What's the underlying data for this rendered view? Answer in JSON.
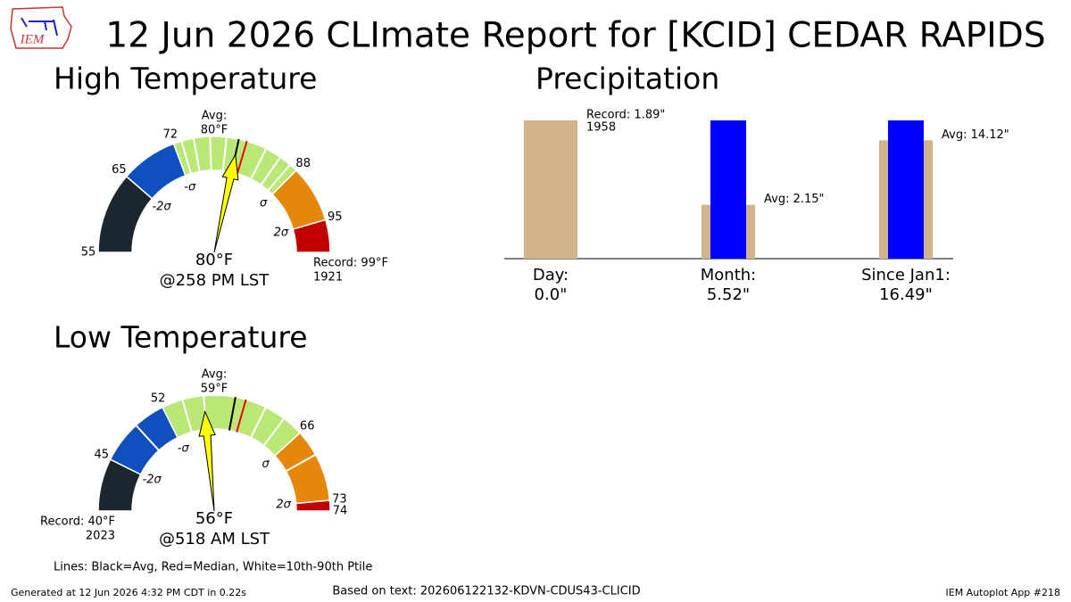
{
  "title": "12 Jun 2026 CLImate Report for [KCID] CEDAR RAPIDS",
  "logo_text": "IEM",
  "chart_data": [
    {
      "type": "gauge",
      "title": "High Temperature",
      "ticks": [
        55,
        65,
        72,
        88,
        95,
        {
          "value": 99,
          "label": "Record: 99°F"
        }
      ],
      "record_year": "1921",
      "band_colors": [
        "#1c262e",
        "#0f4fbf",
        "#b9e877",
        "#e5870a",
        "#c20000"
      ],
      "sigma_labels": [
        "-2σ",
        "-σ",
        "σ",
        "2σ"
      ],
      "avg_label": "Avg:",
      "avg": {
        "value": 80,
        "label": "80°F"
      },
      "median": 81,
      "percentile_lines": [
        73,
        74.5,
        76.5,
        78.5,
        83.5,
        85.5,
        87
      ],
      "observed": {
        "value": 80,
        "label": "80°F"
      },
      "observed_time": "@258 PM LST"
    },
    {
      "type": "bar",
      "title": "Precipitation",
      "categories": [
        "Day:",
        "Month:",
        "Since Jan1:"
      ],
      "series": [
        {
          "color": "#d2b48c",
          "values": [
            1.89,
            2.15,
            14.12
          ],
          "value_labels": [
            "Record: 1.89\"",
            "Avg: 2.15\"",
            "Avg: 14.12\""
          ]
        },
        {
          "color": "#0000ff",
          "values": [
            0.0,
            5.52,
            16.49
          ],
          "value_labels": [
            "0.0\"",
            "5.52\"",
            "16.49\""
          ]
        }
      ],
      "record_year": "1958"
    },
    {
      "type": "gauge",
      "title": "Low Temperature",
      "ticks": [
        {
          "value": 40,
          "label": "Record: 40°F"
        },
        45,
        52,
        66,
        73,
        74
      ],
      "record_year": "2023",
      "band_colors": [
        "#1c262e",
        "#0f4fbf",
        "#b9e877",
        "#e5870a",
        "#c20000"
      ],
      "sigma_labels": [
        "-2σ",
        "-σ",
        "σ",
        "2σ"
      ],
      "avg_label": "Avg:",
      "avg": {
        "value": 59,
        "label": "59°F"
      },
      "median": 60,
      "percentile_lines": [
        49,
        54,
        56,
        62,
        64,
        68.5
      ],
      "observed": {
        "value": 56,
        "label": "56°F"
      },
      "observed_time": "@518 AM LST"
    }
  ],
  "footer": {
    "note": "Lines: Black=Avg, Red=Median, White=10th-90th Ptile",
    "generated": "Generated at 12 Jun 2026 4:32 PM CDT in 0.22s",
    "source": "Based on text: 202606122132-KDVN-CDUS43-CLICID",
    "app": "IEM Autoplot App #218"
  }
}
